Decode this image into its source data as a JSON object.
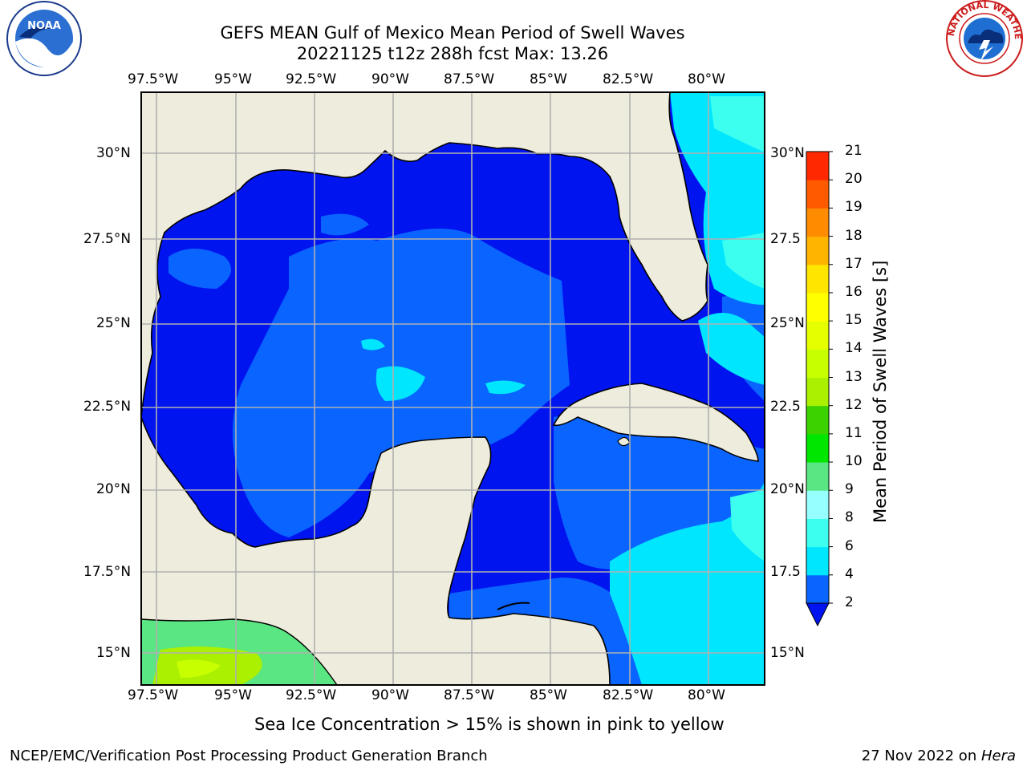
{
  "header": {
    "title_line1": "GEFS MEAN Gulf of Mexico Mean Period of Swell Waves",
    "title_line2": "20221125 t12z 288h fcst   Max: 13.26"
  },
  "map": {
    "lon_labels": [
      "97.5°W",
      "95°W",
      "92.5°W",
      "90°W",
      "87.5°W",
      "85°W",
      "82.5°W",
      "80°W"
    ],
    "lat_labels_left": [
      "30°N",
      "27.5°N",
      "25°N",
      "22.5°N",
      "20°N",
      "17.5°N",
      "15°N"
    ],
    "lat_labels_right": [
      "30°N",
      "27.5",
      "25°N",
      "22.5",
      "20°N",
      "17.5",
      "15°N"
    ],
    "land_color": "#eeecdc",
    "grid_color": "#b0b0b0"
  },
  "colorbar": {
    "label": "Mean Period of Swell Waves [s]",
    "ticks": [
      "2",
      "4",
      "6",
      "8",
      "9",
      "10",
      "11",
      "12",
      "13",
      "14",
      "15",
      "16",
      "17",
      "18",
      "19",
      "20",
      "21"
    ],
    "colors": [
      "#0a64ff",
      "#00e6ff",
      "#3cfff0",
      "#96ffff",
      "#5ae682",
      "#00e600",
      "#3cd200",
      "#aaf000",
      "#c8ff00",
      "#e6ff00",
      "#ffff00",
      "#ffe600",
      "#ffb400",
      "#ff8c00",
      "#ff5a00",
      "#ff2800"
    ],
    "under_color": "#0014f0"
  },
  "caption": "Sea Ice Concentration > 15% is shown in pink to yellow",
  "footer": {
    "left": "NCEP/EMC/Verification Post Processing Product Generation Branch",
    "right_date": "27 Nov 2022 on ",
    "right_host": "Hera"
  },
  "logos": {
    "noaa_text": "NOAA",
    "nws_text": "NATIONAL WEATHER SERVICE"
  }
}
